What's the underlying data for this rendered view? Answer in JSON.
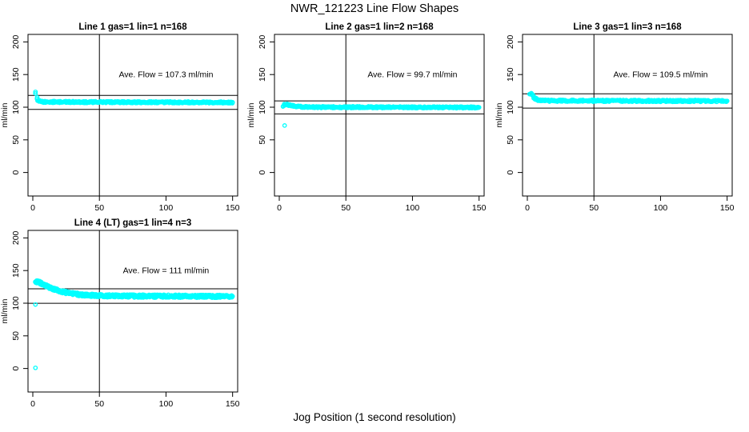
{
  "chart_data": {
    "type": "scatter",
    "title": "NWR_121223  Line Flow Shapes",
    "xlabel": "Jog Position (1 second resolution)",
    "ylabel": "ml/min",
    "xlim": [
      -3.6,
      153.8
    ],
    "ylim": [
      -36,
      211.5
    ],
    "x_ticks": [
      0,
      50,
      100,
      150
    ],
    "y_ticks": [
      0,
      50,
      100,
      150,
      200
    ],
    "grid": false,
    "point_color": "#00ffff",
    "axis_color": "#000000",
    "background_color": "#ffffff",
    "point_style": "open-circle",
    "vline_x": 50,
    "annotation_anchor": {
      "x": 100,
      "y": 150
    },
    "panels": [
      {
        "title": "Line 1 gas=1 lin=1 n=168",
        "annotation": "Ave. Flow =  107.3  ml/min",
        "ave_flow": 107.3,
        "hlines": [
          118.0,
          96.6
        ],
        "outliers": [
          [
            2,
            123.5
          ],
          [
            2,
            121
          ]
        ],
        "curve_points": [
          [
            3,
            114
          ],
          [
            4,
            110.5
          ],
          [
            5,
            109
          ],
          [
            6,
            108.5
          ],
          [
            8,
            108.2
          ],
          [
            10,
            108
          ],
          [
            15,
            108
          ],
          [
            20,
            108
          ],
          [
            25,
            108
          ],
          [
            30,
            108
          ],
          [
            40,
            107.8
          ],
          [
            50,
            107.8
          ],
          [
            60,
            107.8
          ],
          [
            75,
            107.6
          ],
          [
            90,
            107.6
          ],
          [
            100,
            107.6
          ],
          [
            110,
            107.5
          ],
          [
            125,
            107.5
          ],
          [
            140,
            107.4
          ],
          [
            150,
            107.3
          ]
        ],
        "band_halfwidth": 1.3,
        "points_per_step": 2
      },
      {
        "title": "Line 2 gas=1 lin=2 n=168",
        "annotation": "Ave. Flow =  99.7  ml/min",
        "ave_flow": 99.7,
        "hlines": [
          109.7,
          89.7
        ],
        "outliers": [
          [
            4,
            72
          ]
        ],
        "curve_points": [
          [
            3,
            101.5
          ],
          [
            4,
            103.5
          ],
          [
            5,
            104.5
          ],
          [
            6,
            104
          ],
          [
            7,
            103.5
          ],
          [
            8,
            103
          ],
          [
            10,
            102
          ],
          [
            12,
            101.5
          ],
          [
            15,
            100.8
          ],
          [
            20,
            100.3
          ],
          [
            25,
            100.1
          ],
          [
            30,
            100
          ],
          [
            40,
            100
          ],
          [
            50,
            100
          ],
          [
            60,
            100
          ],
          [
            75,
            99.9
          ],
          [
            90,
            99.9
          ],
          [
            100,
            99.8
          ],
          [
            110,
            99.8
          ],
          [
            125,
            99.8
          ],
          [
            140,
            99.7
          ],
          [
            150,
            99.7
          ]
        ],
        "band_halfwidth": 1.3,
        "points_per_step": 2
      },
      {
        "title": "Line 3 gas=1 lin=3 n=168",
        "annotation": "Ave. Flow =  109.5  ml/min",
        "ave_flow": 109.5,
        "hlines": [
          120.5,
          98.6
        ],
        "outliers": [
          [
            3,
            121.5
          ]
        ],
        "curve_points": [
          [
            2,
            119
          ],
          [
            3,
            120
          ],
          [
            4,
            117.5
          ],
          [
            5,
            115
          ],
          [
            6,
            113
          ],
          [
            7,
            112
          ],
          [
            8,
            111
          ],
          [
            10,
            110.5
          ],
          [
            12,
            110.2
          ],
          [
            15,
            110
          ],
          [
            20,
            110
          ],
          [
            25,
            110
          ],
          [
            30,
            109.9
          ],
          [
            40,
            109.9
          ],
          [
            50,
            109.8
          ],
          [
            60,
            109.8
          ],
          [
            75,
            109.7
          ],
          [
            90,
            109.7
          ],
          [
            100,
            109.6
          ],
          [
            110,
            109.6
          ],
          [
            125,
            109.6
          ],
          [
            140,
            109.5
          ],
          [
            150,
            109.5
          ]
        ],
        "band_halfwidth": 1.4,
        "points_per_step": 2
      },
      {
        "title": "Line 4 (LT) gas=1 lin=4 n=3",
        "annotation": "Ave. Flow =  111   ml/min",
        "ave_flow": 111,
        "hlines": [
          122.1,
          99.9
        ],
        "outliers": [
          [
            2,
            1
          ],
          [
            2,
            98
          ]
        ],
        "curve_points": [
          [
            2,
            132
          ],
          [
            3,
            133
          ],
          [
            4,
            132.5
          ],
          [
            5,
            131.5
          ],
          [
            6,
            130.5
          ],
          [
            8,
            128.5
          ],
          [
            10,
            126.5
          ],
          [
            12,
            124.5
          ],
          [
            15,
            122
          ],
          [
            18,
            120
          ],
          [
            20,
            118.8
          ],
          [
            25,
            116.3
          ],
          [
            30,
            114.5
          ],
          [
            35,
            113.3
          ],
          [
            40,
            112.5
          ],
          [
            45,
            112
          ],
          [
            50,
            111.6
          ],
          [
            60,
            111.2
          ],
          [
            70,
            111
          ],
          [
            80,
            110.9
          ],
          [
            90,
            110.8
          ],
          [
            100,
            110.7
          ],
          [
            110,
            110.7
          ],
          [
            120,
            110.6
          ],
          [
            130,
            110.6
          ],
          [
            140,
            110.5
          ],
          [
            150,
            110.5
          ]
        ],
        "band_halfwidth": 2.2,
        "points_per_step": 3
      }
    ]
  }
}
